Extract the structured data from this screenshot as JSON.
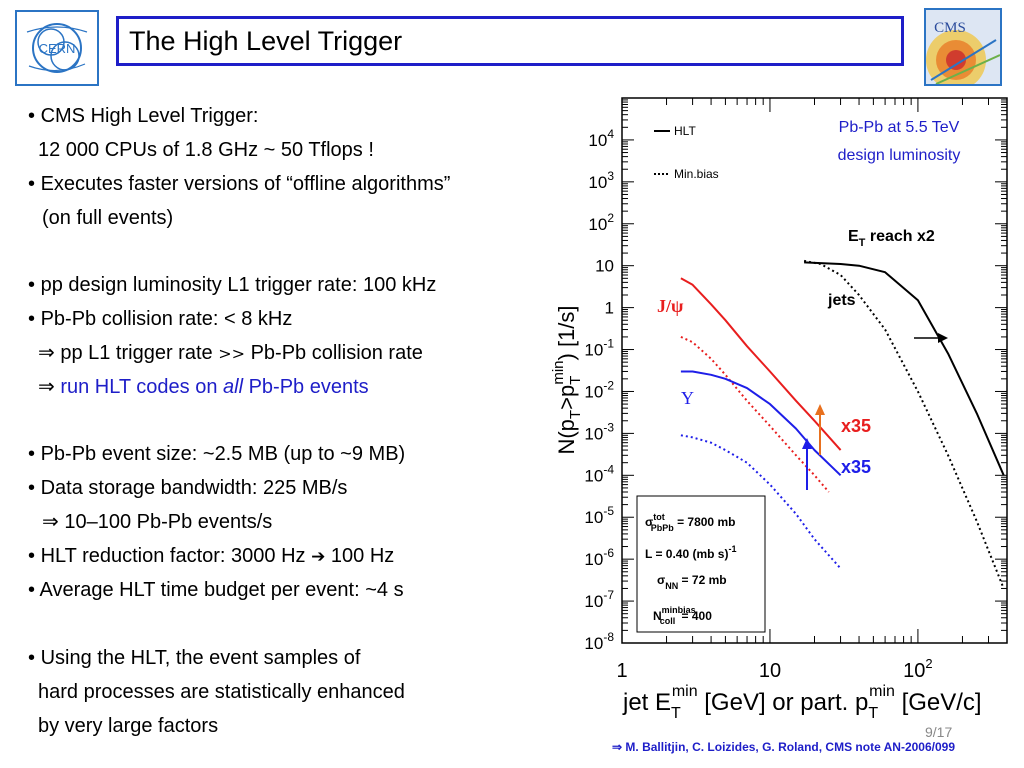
{
  "title": "The High Level Trigger",
  "logos": {
    "left": "CERN",
    "right": "CMS"
  },
  "bullets": {
    "b1": "CMS High Level Trigger:",
    "b1b": "12 000 CPUs of 1.8 GHz ~ 50 Tflops !",
    "b2": "Executes faster versions of “offline algorithms”",
    "b2b": "(on full events)",
    "b3": "pp design luminosity L1 trigger rate: 100 kHz",
    "b4": "Pb-Pb collision rate: < 8 kHz",
    "b4a": "pp L1 trigger rate",
    "b4a_sym": ">>",
    "b4a_rest": "Pb-Pb collision rate",
    "b4b_pre": "run HLT codes on ",
    "b4b_em": "all",
    "b4b_post": " Pb-Pb events",
    "b5": "Pb-Pb event size: ~2.5 MB (up to ~9 MB)",
    "b6": "Data storage bandwidth: 225 MB/s",
    "b6a": "10–100 Pb-Pb events/s",
    "b7_pre": "HLT reduction factor: 3000 Hz",
    "b7_post": "100 Hz",
    "b8": "Average HLT time budget per event: ~4 s",
    "b9": "Using the HLT, the event samples of",
    "b9b": "hard processes are statistically enhanced",
    "b9c": "by very large factors"
  },
  "symbols": {
    "bullet": "•",
    "implies": "⇒",
    "arrow": "➔"
  },
  "chart_data": {
    "type": "line",
    "x_scale": "log",
    "y_scale": "log",
    "xlim": [
      1,
      400
    ],
    "ylim": [
      1e-08,
      100000
    ],
    "xlabel_pre": "jet E",
    "xlabel_sub1": "T",
    "xlabel_sup1": "min",
    "xlabel_mid": " [GeV] or part. p",
    "xlabel_sub2": "T",
    "xlabel_sup2": "min",
    "xlabel_post": " [GeV/c]",
    "ylabel": "N(p_T>p_T^min) [1/s]",
    "x_ticks": [
      {
        "value": 1,
        "label": "1"
      },
      {
        "value": 10,
        "label": "10"
      },
      {
        "value": 100,
        "label": "10",
        "sup": "2"
      }
    ],
    "y_ticks": [
      {
        "value": 10000,
        "label": "10",
        "sup": "4"
      },
      {
        "value": 1000,
        "label": "10",
        "sup": "3"
      },
      {
        "value": 100,
        "label": "10",
        "sup": "2"
      },
      {
        "value": 10,
        "label": "10",
        "sup": ""
      },
      {
        "value": 1,
        "label": "1",
        "sup": ""
      },
      {
        "value": 0.1,
        "label": "10",
        "sup": "-1"
      },
      {
        "value": 0.01,
        "label": "10",
        "sup": "-2"
      },
      {
        "value": 0.001,
        "label": "10",
        "sup": "-3"
      },
      {
        "value": 0.0001,
        "label": "10",
        "sup": "-4"
      },
      {
        "value": 1e-05,
        "label": "10",
        "sup": "-5"
      },
      {
        "value": 1e-06,
        "label": "10",
        "sup": "-6"
      },
      {
        "value": 1e-07,
        "label": "10",
        "sup": "-7"
      },
      {
        "value": 1e-08,
        "label": "10",
        "sup": "-8"
      }
    ],
    "legend": [
      {
        "name": "HLT",
        "style": "solid"
      },
      {
        "name": "Min.bias",
        "style": "dotted"
      }
    ],
    "annotation_top": [
      "Pb-Pb at 5.5 TeV",
      "design luminosity"
    ],
    "series": [
      {
        "name": "jets",
        "style": "solid",
        "color": "#000000",
        "x": [
          17,
          22,
          30,
          40,
          60,
          100,
          160,
          250,
          380
        ],
        "y": [
          12,
          11.5,
          11,
          10,
          7,
          1.5,
          0.08,
          0.003,
          0.0001
        ]
      },
      {
        "name": "jets",
        "style": "dotted",
        "color": "#000000",
        "x": [
          17,
          22,
          30,
          40,
          60,
          100,
          160,
          250,
          380
        ],
        "y": [
          13,
          11,
          6,
          2,
          0.3,
          0.01,
          0.0003,
          8e-06,
          2e-07
        ]
      },
      {
        "name": "J/ψ",
        "style": "solid",
        "color": "#e81e1e",
        "x": [
          2.5,
          3,
          4,
          5,
          7,
          10,
          15,
          20,
          30
        ],
        "y": [
          5,
          3.5,
          1.2,
          0.5,
          0.12,
          0.03,
          0.006,
          0.002,
          0.0004
        ]
      },
      {
        "name": "J/ψ",
        "style": "dotted",
        "color": "#e81e1e",
        "x": [
          2.5,
          3,
          4,
          5,
          7,
          10,
          15,
          20,
          25
        ],
        "y": [
          0.2,
          0.15,
          0.06,
          0.025,
          0.006,
          0.0015,
          0.0003,
          0.0001,
          4e-05
        ]
      },
      {
        "name": "Υ",
        "style": "solid",
        "color": "#1e1ee8",
        "x": [
          2.5,
          3,
          4,
          5,
          7,
          10,
          15,
          20,
          30
        ],
        "y": [
          0.03,
          0.03,
          0.025,
          0.02,
          0.012,
          0.005,
          0.0013,
          0.0004,
          0.0001
        ]
      },
      {
        "name": "Υ",
        "style": "dotted",
        "color": "#1e1ee8",
        "x": [
          2.5,
          3,
          4,
          5,
          7,
          10,
          15,
          20,
          30
        ],
        "y": [
          0.0009,
          0.0008,
          0.0006,
          0.0004,
          0.0002,
          6e-05,
          1.2e-05,
          3e-06,
          6e-07
        ]
      }
    ],
    "labels": {
      "jpsi": "J/ψ",
      "upsilon": "Υ",
      "x35_red": "x35",
      "x35_blue": "x35",
      "jets": "jets",
      "et_reach_pre": "E",
      "et_reach_sub": "T",
      "et_reach_post": " reach x2"
    },
    "infobox": [
      {
        "pre": "σ",
        "sup": "tot",
        "sub": "PbPb",
        "post": " = 7800 mb"
      },
      {
        "pre": "L = 0.40 (mb s)",
        "sup": "-1",
        "sub": "",
        "post": ""
      },
      {
        "pre": "σ",
        "sup": "",
        "sub": "NN",
        "post": " = 72 mb"
      },
      {
        "pre": "N",
        "sup": "minbias",
        "sub": "coll",
        "post": " = 400"
      }
    ]
  },
  "footnote": "M. Ballitjin, C. Loizides, G. Roland, CMS note AN-2006/099",
  "page": "9/17"
}
